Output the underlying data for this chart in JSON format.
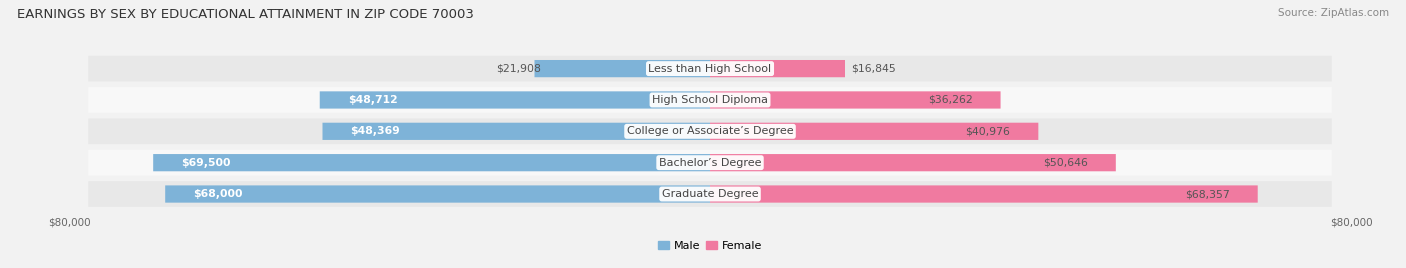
{
  "title": "EARNINGS BY SEX BY EDUCATIONAL ATTAINMENT IN ZIP CODE 70003",
  "source": "Source: ZipAtlas.com",
  "categories": [
    "Less than High School",
    "High School Diploma",
    "College or Associate’s Degree",
    "Bachelor’s Degree",
    "Graduate Degree"
  ],
  "male_values": [
    21908,
    48712,
    48369,
    69500,
    68000
  ],
  "female_values": [
    16845,
    36262,
    40976,
    50646,
    68357
  ],
  "male_color": "#7eb3d8",
  "female_color": "#f07aa0",
  "male_label": "Male",
  "female_label": "Female",
  "xlim": 80000,
  "bg_color": "#f2f2f2",
  "row_color_odd": "#e8e8e8",
  "row_color_even": "#f8f8f8",
  "title_fontsize": 9.5,
  "source_fontsize": 7.5,
  "label_fontsize": 8.0,
  "value_fontsize": 7.8,
  "axis_tick_fontsize": 7.5
}
